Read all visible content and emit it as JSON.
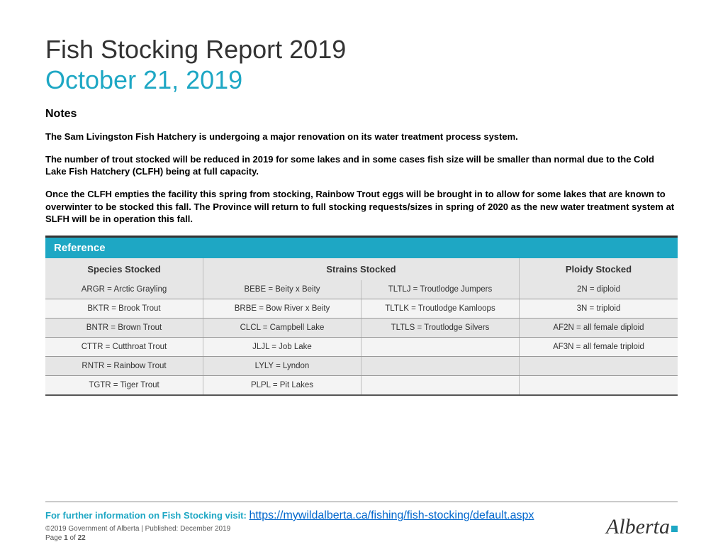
{
  "title": "Fish Stocking Report 2019",
  "subtitle": "October 21, 2019",
  "notes_heading": "Notes",
  "notes": [
    "The Sam Livingston Fish Hatchery is undergoing a major renovation on its water treatment process system.",
    "The number of trout stocked will be reduced in 2019 for some lakes and in some cases fish size will be smaller than normal due to the Cold Lake Fish Hatchery (CLFH) being at full capacity.",
    "Once the CLFH empties the facility this spring from stocking, Rainbow Trout eggs will be brought in to allow for some lakes that are known to overwinter to be stocked this fall. The Province will return to full stocking requests/sizes in spring of 2020 as the new water treatment system at SLFH will be in operation this fall."
  ],
  "reference": {
    "heading": "Reference",
    "columns": [
      "Species Stocked",
      "Strains Stocked",
      "Ploidy Stocked"
    ],
    "rows": [
      {
        "species": "ARGR = Arctic Grayling",
        "strain1": "BEBE = Beity x Beity",
        "strain2": "TLTLJ = Troutlodge Jumpers",
        "ploidy": "2N = diploid"
      },
      {
        "species": "BKTR = Brook Trout",
        "strain1": "BRBE = Bow River x Beity",
        "strain2": "TLTLK = Troutlodge Kamloops",
        "ploidy": "3N = triploid"
      },
      {
        "species": "BNTR = Brown Trout",
        "strain1": "CLCL = Campbell Lake",
        "strain2": "TLTLS = Troutlodge Silvers",
        "ploidy": "AF2N = all female diploid"
      },
      {
        "species": "CTTR = Cutthroat Trout",
        "strain1": "JLJL = Job Lake",
        "strain2": "",
        "ploidy": "AF3N = all female triploid"
      },
      {
        "species": "RNTR = Rainbow Trout",
        "strain1": "LYLY = Lyndon",
        "strain2": "",
        "ploidy": ""
      },
      {
        "species": "TGTR = Tiger Trout",
        "strain1": "PLPL = Pit Lakes",
        "strain2": "",
        "ploidy": ""
      }
    ]
  },
  "footer": {
    "info_label": "For further information on Fish Stocking visit: ",
    "link": "https://mywildalberta.ca/fishing/fish-stocking/default.aspx",
    "copyright": "©2019 Government of Alberta | Published: December 2019",
    "page_label": "Page ",
    "page_current": "1",
    "page_sep": " of ",
    "page_total": "22",
    "logo_text": "Alberta"
  },
  "colors": {
    "accent": "#1ea7c4",
    "text": "#333333",
    "row_alt1": "#e6e6e6",
    "row_alt2": "#f4f4f4",
    "link": "#0066cc"
  }
}
